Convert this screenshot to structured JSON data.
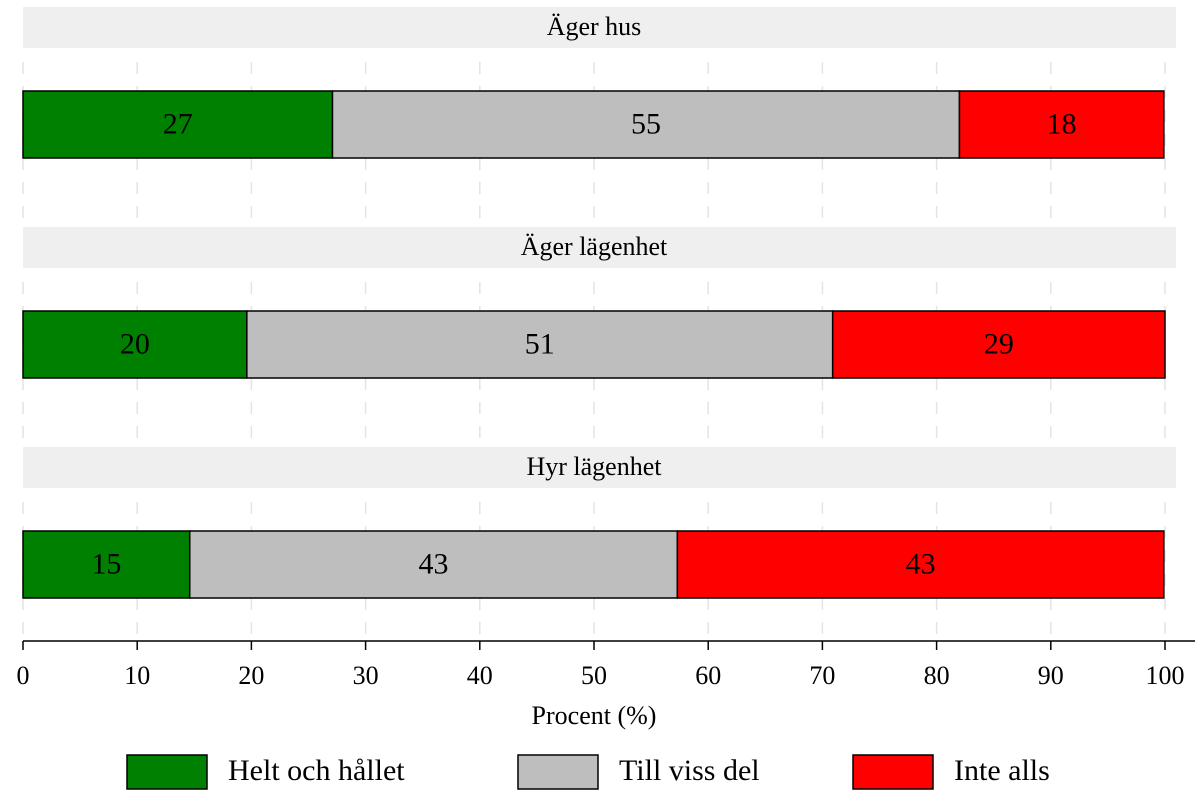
{
  "chart_data": {
    "type": "bar",
    "orientation": "horizontal",
    "stacked": true,
    "categories": [
      "Äger hus",
      "Äger lägenhet",
      "Hyr lägenhet"
    ],
    "series": [
      {
        "name": "Helt och hållet",
        "color": "#008000",
        "values": [
          27.1,
          19.6,
          14.6
        ],
        "value_labels": [
          "27",
          "20",
          "15"
        ]
      },
      {
        "name": "Till viss del",
        "color": "#bebebe",
        "values": [
          54.9,
          51.3,
          42.7
        ],
        "value_labels": [
          "55",
          "51",
          "43"
        ]
      },
      {
        "name": "Inte alls",
        "color": "#ff0000",
        "values": [
          17.9,
          29.1,
          42.6
        ],
        "value_labels": [
          "18",
          "29",
          "43"
        ]
      }
    ],
    "xlim": [
      0,
      100
    ],
    "xticks": [
      0,
      10,
      20,
      30,
      40,
      50,
      60,
      70,
      80,
      90,
      100
    ],
    "xlabel": "Procent (%)",
    "grid": true,
    "legend": "bottom"
  }
}
